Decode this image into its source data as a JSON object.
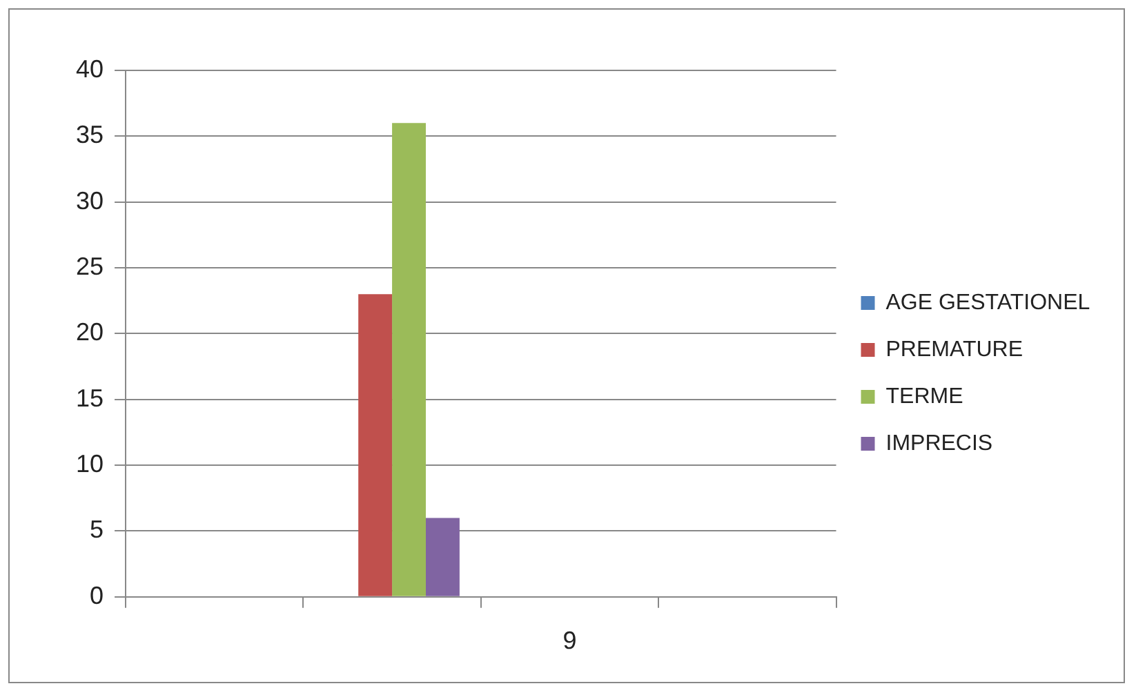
{
  "chart_data": {
    "type": "bar",
    "categories": [
      null,
      null,
      "9",
      null
    ],
    "series": [
      {
        "name": "AGE GESTATIONEL",
        "color": "#4f81bd",
        "values": [
          null,
          0,
          null,
          null
        ]
      },
      {
        "name": "PREMATURE",
        "color": "#c0504d",
        "values": [
          null,
          23,
          null,
          null
        ]
      },
      {
        "name": "TERME",
        "color": "#9bbb59",
        "values": [
          null,
          36,
          null,
          null
        ]
      },
      {
        "name": "IMPRECIS",
        "color": "#8064a2",
        "values": [
          null,
          6,
          null,
          null
        ]
      }
    ],
    "ylim": [
      0,
      40
    ],
    "yticks": [
      0,
      5,
      10,
      15,
      20,
      25,
      30,
      35,
      40
    ],
    "grid": "y",
    "legend": "right"
  }
}
